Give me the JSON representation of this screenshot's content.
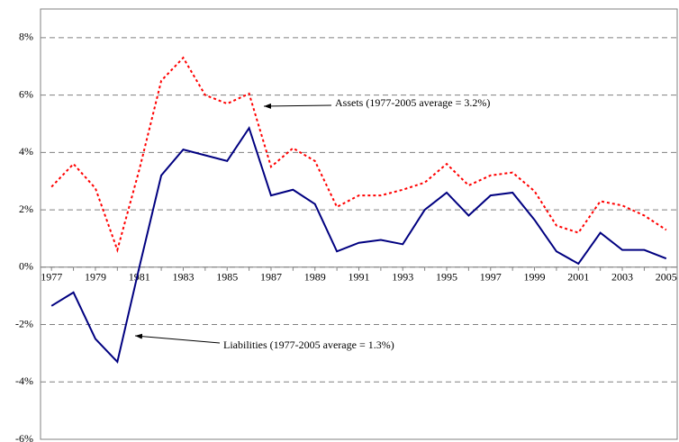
{
  "chart_data": {
    "type": "line",
    "x": [
      1977,
      1978,
      1979,
      1980,
      1981,
      1982,
      1983,
      1984,
      1985,
      1986,
      1987,
      1988,
      1989,
      1990,
      1991,
      1992,
      1993,
      1994,
      1995,
      1996,
      1997,
      1998,
      1999,
      2000,
      2001,
      2002,
      2003,
      2004,
      2005
    ],
    "series": [
      {
        "name": "Assets",
        "color": "#ff0000",
        "style": "dotted",
        "values": [
          2.8,
          3.6,
          2.75,
          0.6,
          3.4,
          6.5,
          7.3,
          6.0,
          5.7,
          6.05,
          3.5,
          4.15,
          3.7,
          2.1,
          2.5,
          2.5,
          2.7,
          2.95,
          3.6,
          2.85,
          3.2,
          3.3,
          2.65,
          1.45,
          1.2,
          2.3,
          2.15,
          1.8,
          1.3
        ]
      },
      {
        "name": "Liabilities",
        "color": "#000080",
        "style": "solid",
        "values": [
          -1.35,
          -0.88,
          -2.5,
          -3.3,
          0.0,
          3.2,
          4.1,
          3.9,
          3.7,
          4.85,
          2.5,
          2.7,
          2.2,
          0.55,
          0.85,
          0.95,
          0.8,
          2.0,
          2.6,
          1.8,
          2.5,
          2.6,
          1.65,
          0.55,
          0.12,
          1.2,
          0.6,
          0.6,
          0.3
        ]
      }
    ],
    "xlim": [
      1976.5,
      2005.5
    ],
    "xticks": [
      1977,
      1979,
      1981,
      1983,
      1985,
      1987,
      1989,
      1991,
      1993,
      1995,
      1997,
      1999,
      2001,
      2003,
      2005
    ],
    "ylim": [
      -6,
      9
    ],
    "yticks": [
      {
        "value": -6,
        "label": "-6%"
      },
      {
        "value": -4,
        "label": "-4%"
      },
      {
        "value": -2,
        "label": "-2%"
      },
      {
        "value": 0,
        "label": "0%"
      },
      {
        "value": 2,
        "label": "2%"
      },
      {
        "value": 4,
        "label": "4%"
      },
      {
        "value": 6,
        "label": "6%"
      },
      {
        "value": 8,
        "label": "8%"
      }
    ],
    "grid": true,
    "annotations": [
      "Assets  (1977-2005 average = 3.2%)",
      "Liabilities (1977-2005 average = 1.3%)"
    ]
  }
}
